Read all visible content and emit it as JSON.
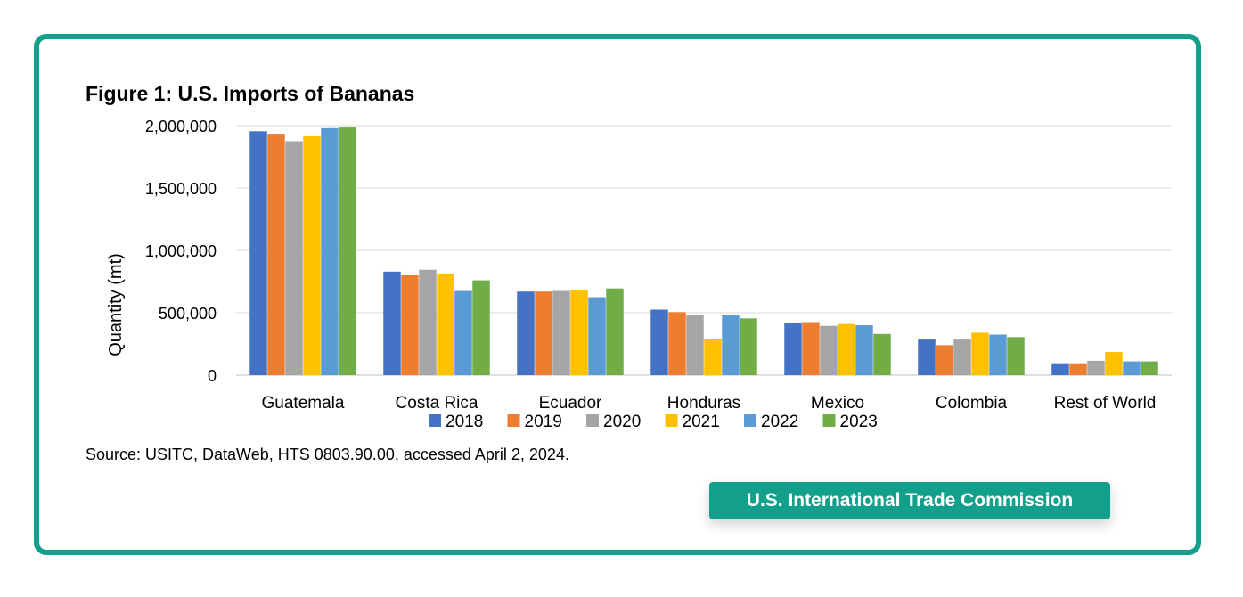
{
  "chart_data": {
    "type": "bar",
    "title": "Figure 1: U.S. Imports of Bananas",
    "ylabel": "Quantity (mt)",
    "xlabel": "",
    "ylim": [
      0,
      2000000
    ],
    "yticks": [
      "0",
      "500,000",
      "1,000,000",
      "1,500,000",
      "2,000,000"
    ],
    "grid": true,
    "legend_position": "bottom",
    "categories": [
      "Guatemala",
      "Costa Rica",
      "Ecuador",
      "Honduras",
      "Mexico",
      "Colombia",
      "Rest of World"
    ],
    "series": [
      {
        "name": "2018",
        "color": "#4472c4",
        "values": [
          1955000,
          830000,
          670000,
          525000,
          420000,
          285000,
          95000
        ]
      },
      {
        "name": "2019",
        "color": "#ed7d31",
        "values": [
          1935000,
          800000,
          670000,
          505000,
          425000,
          240000,
          95000
        ]
      },
      {
        "name": "2020",
        "color": "#a5a5a5",
        "values": [
          1875000,
          845000,
          675000,
          480000,
          395000,
          285000,
          115000
        ]
      },
      {
        "name": "2021",
        "color": "#ffc000",
        "values": [
          1915000,
          815000,
          685000,
          290000,
          410000,
          340000,
          185000
        ]
      },
      {
        "name": "2022",
        "color": "#5b9bd5",
        "values": [
          1980000,
          675000,
          625000,
          480000,
          400000,
          325000,
          110000
        ]
      },
      {
        "name": "2023",
        "color": "#70ad47",
        "values": [
          1985000,
          760000,
          695000,
          455000,
          330000,
          305000,
          110000
        ]
      }
    ]
  },
  "source": "Source: USITC, DataWeb, HTS 0803.90.00, accessed April 2, 2024.",
  "badge": "U.S. International Trade Commission"
}
